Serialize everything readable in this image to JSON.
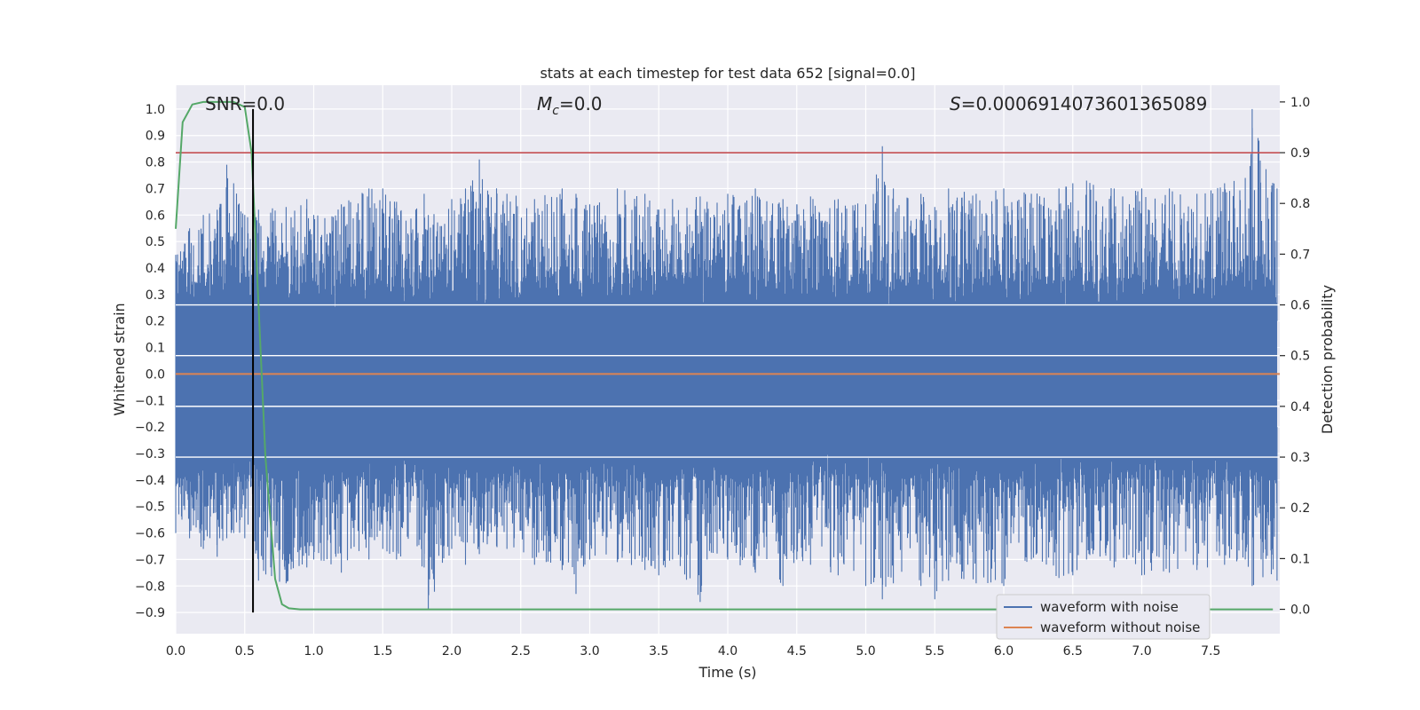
{
  "chart_data": {
    "type": "line",
    "title": "stats at each timestep for test data 652 [signal=0.0]",
    "xlabel": "Time (s)",
    "ylabel": "Whitened strain",
    "ylabel_right": "Detection probability",
    "xlim": [
      0.0,
      8.0
    ],
    "ylim": [
      -0.98,
      1.09
    ],
    "ylim_right": [
      -0.048,
      1.033
    ],
    "x_ticks": [
      "0.0",
      "0.5",
      "1.0",
      "1.5",
      "2.0",
      "2.5",
      "3.0",
      "3.5",
      "4.0",
      "4.5",
      "5.0",
      "5.5",
      "6.0",
      "6.5",
      "7.0",
      "7.5"
    ],
    "y_ticks": [
      "1.0",
      "0.9",
      "0.8",
      "0.7",
      "0.6",
      "0.5",
      "0.4",
      "0.3",
      "0.2",
      "0.1",
      "0.0",
      "−0.1",
      "−0.2",
      "−0.3",
      "−0.4",
      "−0.5",
      "−0.6",
      "−0.7",
      "−0.8",
      "−0.9"
    ],
    "y2_ticks": [
      "1.0",
      "0.9",
      "0.8",
      "0.7",
      "0.6",
      "0.5",
      "0.4",
      "0.3",
      "0.2",
      "0.1",
      "0.0"
    ],
    "grid": true,
    "annotations": {
      "snr": "SNR=0.0",
      "mc": "=0.0",
      "mc_symbol": "M",
      "mc_sub": "c",
      "s": "=0.0006914073601365089",
      "s_symbol": "S"
    },
    "series": [
      {
        "name": "waveform with noise",
        "color": "#4c72b0",
        "note": "whitened noise envelope; per-bin max/min",
        "x": [
          0.0,
          0.1,
          0.2,
          0.3,
          0.37,
          0.42,
          0.5,
          0.6,
          0.8,
          0.95,
          1.0,
          1.2,
          1.4,
          1.5,
          1.6,
          1.8,
          1.83,
          2.0,
          2.1,
          2.2,
          2.4,
          2.6,
          2.8,
          2.9,
          3.0,
          3.2,
          3.4,
          3.5,
          3.6,
          3.8,
          3.85,
          4.0,
          4.2,
          4.4,
          4.5,
          4.6,
          4.8,
          5.0,
          5.12,
          5.2,
          5.4,
          5.5,
          5.6,
          5.8,
          6.0,
          6.2,
          6.4,
          6.5,
          6.6,
          6.8,
          7.0,
          7.2,
          7.4,
          7.6,
          7.75,
          7.8,
          7.98
        ],
        "upper": [
          0.45,
          0.55,
          0.6,
          0.62,
          0.79,
          0.72,
          0.6,
          0.62,
          0.63,
          0.66,
          0.6,
          0.64,
          0.7,
          0.7,
          0.65,
          0.68,
          0.6,
          0.66,
          0.7,
          0.81,
          0.68,
          0.66,
          0.7,
          0.68,
          0.64,
          0.7,
          0.68,
          0.62,
          0.66,
          0.67,
          0.65,
          0.68,
          0.7,
          0.66,
          0.64,
          0.67,
          0.66,
          0.64,
          0.86,
          0.7,
          0.68,
          0.63,
          0.7,
          0.68,
          0.7,
          0.68,
          0.7,
          0.72,
          0.73,
          0.7,
          0.7,
          0.7,
          0.68,
          0.72,
          0.74,
          1.0,
          0.7
        ],
        "lower": [
          -0.6,
          -0.62,
          -0.66,
          -0.69,
          -0.62,
          -0.6,
          -0.62,
          -0.78,
          -0.79,
          -0.73,
          -0.7,
          -0.75,
          -0.7,
          -0.66,
          -0.7,
          -0.73,
          -0.89,
          -0.66,
          -0.72,
          -0.68,
          -0.66,
          -0.72,
          -0.74,
          -0.83,
          -0.7,
          -0.71,
          -0.74,
          -0.76,
          -0.7,
          -0.86,
          -0.7,
          -0.7,
          -0.75,
          -0.8,
          -0.7,
          -0.72,
          -0.76,
          -0.8,
          -0.85,
          -0.79,
          -0.8,
          -0.85,
          -0.78,
          -0.79,
          -0.8,
          -0.7,
          -0.77,
          -0.76,
          -0.7,
          -0.73,
          -0.76,
          -0.75,
          -0.74,
          -0.72,
          -0.7,
          -0.8,
          -0.78
        ]
      },
      {
        "name": "waveform without noise",
        "color": "#dd8452",
        "x": [
          0.0,
          8.0
        ],
        "y": [
          0.0,
          0.0
        ]
      },
      {
        "name": "detection probability",
        "color": "#55a868",
        "axis": "right",
        "x": [
          0.0,
          0.05,
          0.12,
          0.2,
          0.3,
          0.42,
          0.5,
          0.55,
          0.6,
          0.65,
          0.72,
          0.77,
          0.82,
          0.9,
          1.0,
          2.0,
          4.0,
          6.0,
          7.0,
          7.95
        ],
        "y": [
          0.75,
          0.96,
          0.995,
          1.0,
          1.0,
          1.0,
          0.99,
          0.9,
          0.6,
          0.3,
          0.06,
          0.01,
          0.002,
          0.0,
          0.0,
          0.0,
          0.0,
          0.0,
          0.0,
          0.0
        ]
      }
    ],
    "threshold": {
      "axis": "right",
      "y": 0.9,
      "color": "#c44e52"
    },
    "vline": {
      "x": 0.56,
      "y_range": [
        -0.9,
        1.0
      ],
      "color": "#000000"
    },
    "legend": {
      "location": "lower-right",
      "entries": [
        {
          "label": "waveform with noise",
          "color": "#4c72b0"
        },
        {
          "label": "waveform without noise",
          "color": "#dd8452"
        }
      ]
    }
  }
}
